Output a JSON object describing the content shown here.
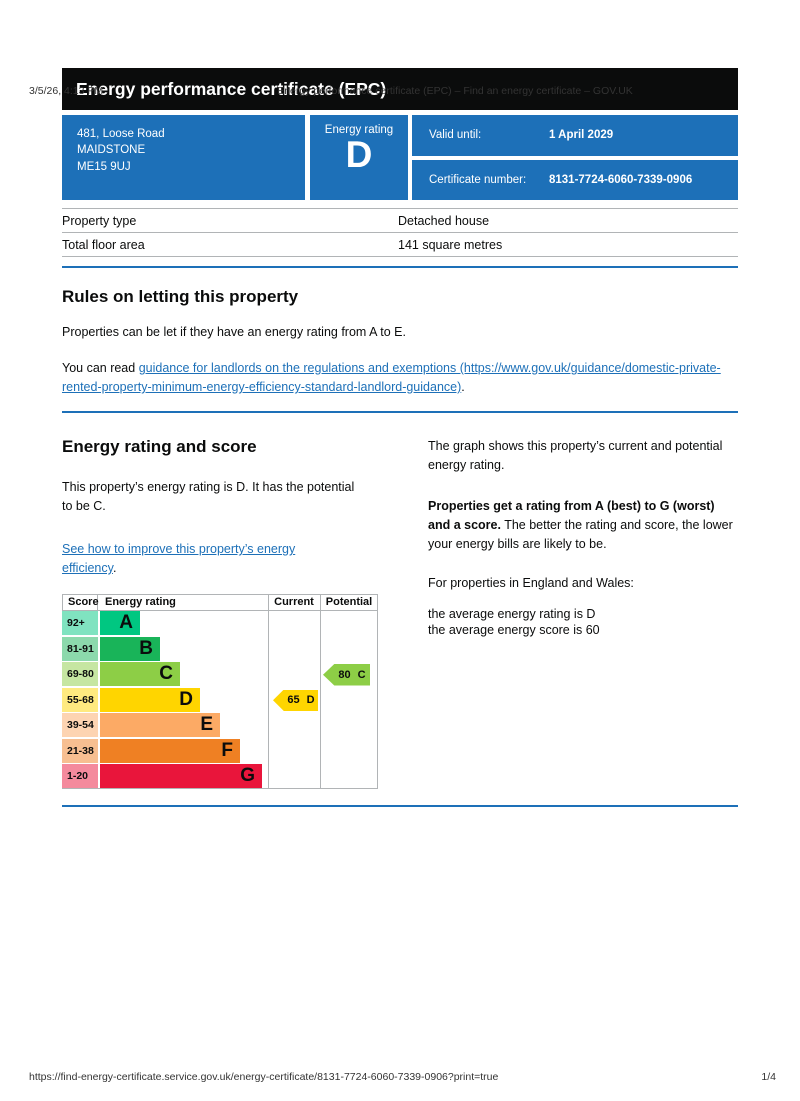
{
  "print_header": {
    "datetime": "3/5/26, 4:13 PM",
    "document_title": "Energy performance certificate (EPC) – Find an energy certificate – GOV.UK"
  },
  "banner": {
    "title": "Energy performance certificate (EPC)"
  },
  "summary": {
    "address_line_1": "481, Loose Road",
    "address_line_2": "MAIDSTONE",
    "address_line_3": "ME15 9UJ",
    "energy_rating_label": "Energy rating",
    "energy_rating": "D",
    "valid_until_label": "Valid until:",
    "valid_until_value": "1 April 2029",
    "certificate_number_label": "Certificate number:",
    "certificate_number_value": "8131-7724-6060-7339-0906",
    "box_color": "#1d70b8"
  },
  "property_table": {
    "rows": [
      {
        "label": "Property type",
        "value": "Detached house"
      },
      {
        "label": "Total floor area",
        "value": "141 square metres"
      }
    ]
  },
  "letting_rules": {
    "heading": "Rules on letting this property",
    "paragraph": "Properties can be let if they have an energy rating from A to E.",
    "read_prefix": "You can read ",
    "link_text": "guidance for landlords on the regulations and exemptions (https://www.gov.uk/guidance/domestic-private-rented-property-minimum-energy-efficiency-standard-landlord-guidance)",
    "read_suffix": "."
  },
  "rating_section": {
    "heading": "Energy rating and score",
    "lead": "This property’s energy rating is D. It has the potential to be C.",
    "improve_link_text": "See how to improve this property’s energy efficiency",
    "improve_link_suffix": ".",
    "graph_intro": "The graph shows this property’s current and potential energy rating.",
    "explain_bold": "Properties get a rating from A (best) to G (worst) and a score.",
    "explain_rest": " The better the rating and score, the lower your energy bills are likely to be.",
    "england_wales_intro": "For properties in England and Wales:",
    "average_rating_line": "the average energy rating is D",
    "average_score_line": "the average energy score is 60"
  },
  "chart_data": {
    "type": "epc_rating_bands",
    "headers": {
      "score": "Score",
      "rating": "Energy rating",
      "current": "Current",
      "potential": "Potential"
    },
    "bands": [
      {
        "score": "92+",
        "letter": "A",
        "color": "#00c781",
        "tint": "#80e3c0"
      },
      {
        "score": "81-91",
        "letter": "B",
        "color": "#19b459",
        "tint": "#8cd9ac"
      },
      {
        "score": "69-80",
        "letter": "C",
        "color": "#8dce46",
        "tint": "#c6e6a2"
      },
      {
        "score": "55-68",
        "letter": "D",
        "color": "#ffd500",
        "tint": "#ffea80"
      },
      {
        "score": "39-54",
        "letter": "E",
        "color": "#fcaa65",
        "tint": "#fdd4b2"
      },
      {
        "score": "21-38",
        "letter": "F",
        "color": "#ef8023",
        "tint": "#f7bf91"
      },
      {
        "score": "1-20",
        "letter": "G",
        "color": "#e9153b",
        "tint": "#f48a9d"
      }
    ],
    "current": {
      "score": "65",
      "band": "D",
      "color": "#ffd500"
    },
    "potential": {
      "score": "80",
      "band": "C",
      "color": "#8dce46"
    }
  },
  "print_footer": {
    "url": "https://find-energy-certificate.service.gov.uk/energy-certificate/8131-7724-6060-7339-0906?print=true",
    "page": "1/4"
  }
}
